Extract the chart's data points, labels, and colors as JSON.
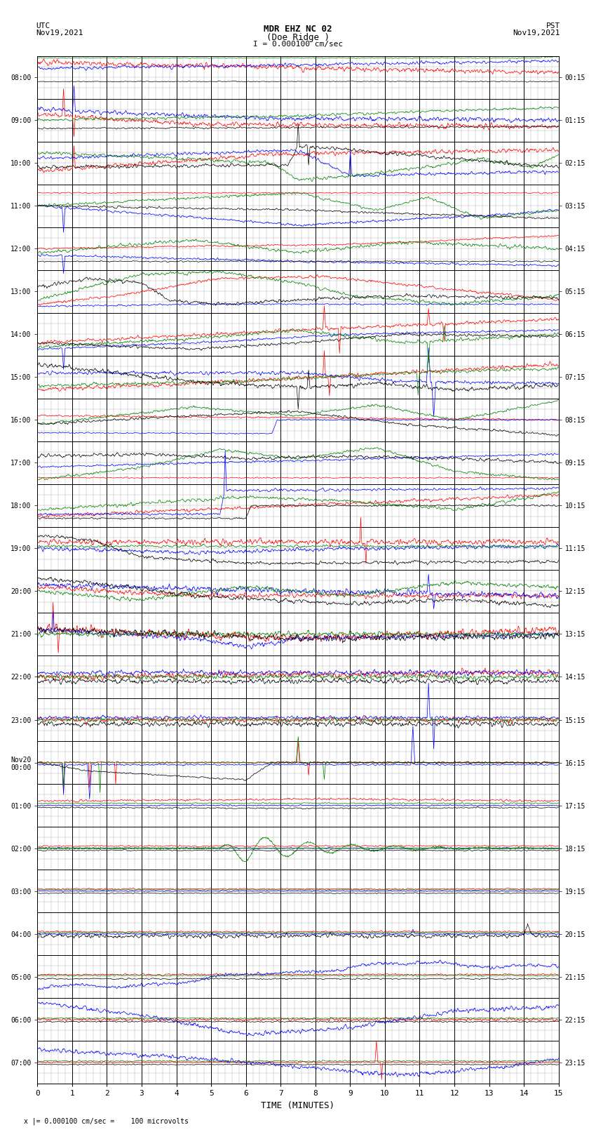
{
  "title_line1": "MDR EHZ NC 02",
  "title_line2": "(Doe Ridge )",
  "scale_text": "I = 0.000100 cm/sec",
  "left_label": "UTC\nNov19,2021",
  "right_label": "PST\nNov19,2021",
  "bottom_label": "x |= 0.000100 cm/sec =    100 microvolts",
  "utc_times": [
    "08:00",
    "09:00",
    "10:00",
    "11:00",
    "12:00",
    "13:00",
    "14:00",
    "15:00",
    "16:00",
    "17:00",
    "18:00",
    "19:00",
    "20:00",
    "21:00",
    "22:00",
    "23:00",
    "Nov20\n00:00",
    "01:00",
    "02:00",
    "03:00",
    "04:00",
    "05:00",
    "06:00",
    "07:00"
  ],
  "pst_times": [
    "00:15",
    "01:15",
    "02:15",
    "03:15",
    "04:15",
    "05:15",
    "06:15",
    "07:15",
    "08:15",
    "09:15",
    "10:15",
    "11:15",
    "12:15",
    "13:15",
    "14:15",
    "15:15",
    "16:15",
    "17:15",
    "18:15",
    "19:15",
    "20:15",
    "21:15",
    "22:15",
    "23:15"
  ],
  "n_rows": 24,
  "n_minutes": 15,
  "bg_color": "#ffffff",
  "grid_major_color": "#000000",
  "grid_minor_color": "#aaaaaa",
  "xlabel": "TIME (MINUTES)"
}
